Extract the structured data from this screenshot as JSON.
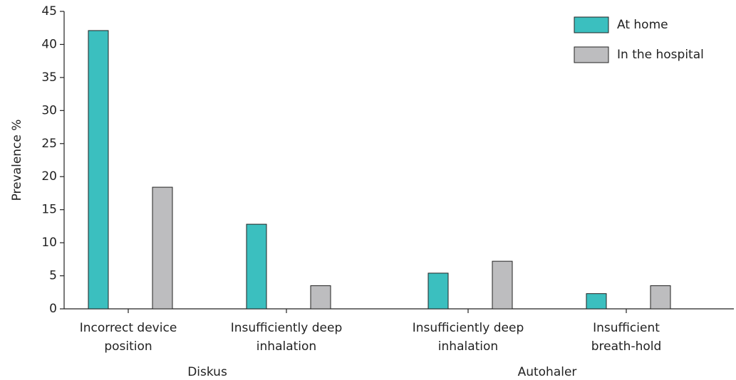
{
  "chart_data": {
    "type": "bar",
    "y_label": "Prevalence %",
    "groups": [
      {
        "name": "Diskus",
        "categories": [
          [
            "Incorrect device",
            "position"
          ],
          [
            "Insufficiently deep",
            "inhalation"
          ]
        ]
      },
      {
        "name": "Autohaler",
        "categories": [
          [
            "Insufficiently deep",
            "inhalation"
          ],
          [
            "Insufficient",
            "breath-hold"
          ]
        ]
      }
    ],
    "series": [
      {
        "name": "At home",
        "color": "#3bbfbf",
        "values": [
          42.1,
          12.8,
          5.4,
          2.3
        ]
      },
      {
        "name": "In the hospital",
        "color": "#bdbdbf",
        "values": [
          18.4,
          3.5,
          7.2,
          3.5
        ]
      }
    ],
    "ylim": [
      0,
      45
    ],
    "yticks": [
      0,
      5,
      10,
      15,
      20,
      25,
      30,
      35,
      40,
      45
    ],
    "legend": "top-right"
  }
}
